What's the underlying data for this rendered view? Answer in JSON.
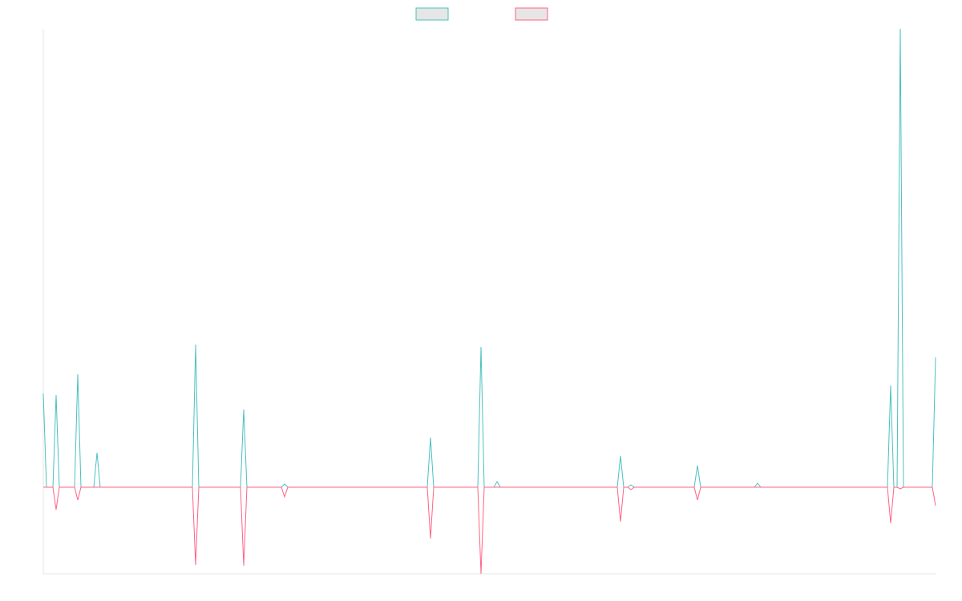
{
  "chart_data": {
    "type": "line",
    "x": [
      0,
      4,
      12,
      16,
      20,
      39,
      43,
      47,
      63,
      67,
      71,
      186,
      190,
      194,
      246,
      250,
      254,
      297,
      301,
      305,
      479,
      483,
      487,
      542,
      546,
      550,
      562,
      566,
      570,
      716,
      720,
      724,
      729,
      733,
      737,
      812,
      816,
      820,
      887,
      891,
      895,
      1053,
      1057,
      1061,
      1065,
      1069,
      1073,
      1109,
      1113
    ],
    "series": [
      {
        "color": "#4bc0c0",
        "values": [
          117,
          0,
          0,
          115,
          0,
          0,
          141,
          0,
          0,
          43,
          0,
          0,
          178,
          0,
          0,
          97,
          0,
          0,
          4,
          0,
          0,
          62,
          0,
          0,
          175,
          0,
          0,
          7,
          0,
          0,
          39,
          0,
          0,
          3,
          0,
          0,
          27,
          0,
          0,
          5,
          0,
          0,
          127,
          0,
          0,
          572,
          0,
          0,
          162
        ]
      },
      {
        "color": "#ff6384",
        "values": [
          0,
          0,
          0,
          -28,
          0,
          0,
          -16,
          0,
          0,
          0,
          0,
          0,
          -97,
          0,
          0,
          -98,
          0,
          0,
          -12,
          0,
          0,
          -64,
          0,
          0,
          -108,
          0,
          0,
          0,
          0,
          0,
          -43,
          0,
          0,
          -3,
          0,
          0,
          -16,
          0,
          0,
          0,
          0,
          0,
          -45,
          0,
          0,
          -2,
          0,
          0,
          -23
        ]
      }
    ],
    "xlim": [
      0,
      1113
    ],
    "ylim": [
      -108,
      572
    ],
    "legend": "top"
  }
}
